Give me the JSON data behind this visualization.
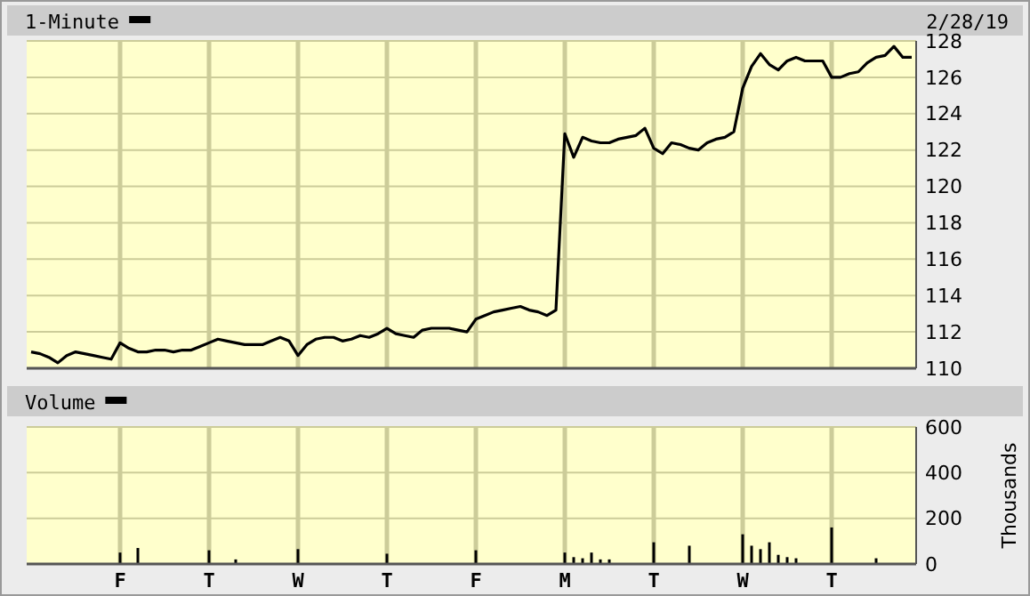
{
  "chart_data": [
    {
      "type": "line",
      "title": "1-Minute",
      "subtitle": "2/28/19",
      "grid": true,
      "tick_labels": "y",
      "ylim": [
        110,
        128
      ],
      "yticks": [
        110,
        112,
        114,
        116,
        118,
        120,
        122,
        124,
        126,
        128
      ],
      "categories": [
        null,
        null,
        null,
        null,
        null,
        null,
        null,
        null,
        null,
        null,
        null,
        null,
        null,
        null,
        null,
        null,
        null,
        null,
        null,
        null,
        null,
        null,
        null,
        null,
        null,
        null,
        null,
        null,
        null,
        null,
        null,
        null,
        null,
        null,
        null,
        null,
        null,
        null,
        null,
        null,
        null,
        null,
        null,
        null,
        null,
        null,
        null,
        null,
        null,
        null,
        null,
        null,
        null,
        null,
        null,
        null,
        null,
        null,
        null,
        null,
        null,
        null,
        null,
        null,
        null,
        null,
        null,
        null,
        null,
        null,
        null,
        null,
        null,
        null,
        null,
        null,
        null,
        null,
        null,
        null,
        null,
        null,
        null,
        null,
        null,
        null,
        null,
        null,
        null,
        null,
        null,
        null,
        null,
        null,
        null,
        null,
        null,
        null,
        null,
        null
      ],
      "series": [
        {
          "color": "#000000",
          "values": [
            110.9,
            110.8,
            110.6,
            110.3,
            110.7,
            110.9,
            110.8,
            110.7,
            110.6,
            110.5,
            111.4,
            111.1,
            110.9,
            110.9,
            111.0,
            111.0,
            110.9,
            111.0,
            111.0,
            111.2,
            111.4,
            111.6,
            111.5,
            111.4,
            111.3,
            111.3,
            111.3,
            111.5,
            111.7,
            111.5,
            110.7,
            111.3,
            111.6,
            111.7,
            111.7,
            111.5,
            111.6,
            111.8,
            111.7,
            111.9,
            112.2,
            111.9,
            111.8,
            111.7,
            112.1,
            112.2,
            112.2,
            112.2,
            112.1,
            112.0,
            112.7,
            112.9,
            113.1,
            113.2,
            113.3,
            113.4,
            113.2,
            113.1,
            112.9,
            113.2,
            122.9,
            121.6,
            122.7,
            122.5,
            122.4,
            122.4,
            122.6,
            122.7,
            122.8,
            123.2,
            122.1,
            121.8,
            122.4,
            122.3,
            122.1,
            122.0,
            122.4,
            122.6,
            122.7,
            123.0,
            125.4,
            126.6,
            127.3,
            126.7,
            126.4,
            126.9,
            127.1,
            126.9,
            126.9,
            126.9,
            126.0,
            126.0,
            126.2,
            126.3,
            126.8,
            127.1,
            127.2,
            127.7,
            127.1,
            127.1
          ]
        }
      ]
    },
    {
      "type": "bar",
      "title": "Volume",
      "ylabel": "Thousands",
      "grid": true,
      "ylim": [
        0,
        600
      ],
      "yticks": [
        0,
        200,
        400,
        600
      ],
      "categories": [
        null,
        null,
        null,
        null,
        null,
        null,
        null,
        null,
        null,
        null,
        "F",
        null,
        null,
        null,
        null,
        null,
        null,
        null,
        null,
        null,
        "T",
        null,
        null,
        null,
        null,
        null,
        null,
        null,
        null,
        null,
        "W",
        null,
        null,
        null,
        null,
        null,
        null,
        null,
        null,
        null,
        "T",
        null,
        null,
        null,
        null,
        null,
        null,
        null,
        null,
        null,
        "F",
        null,
        null,
        null,
        null,
        null,
        null,
        null,
        null,
        null,
        "M",
        null,
        null,
        null,
        null,
        null,
        null,
        null,
        null,
        null,
        "T",
        null,
        null,
        null,
        null,
        null,
        null,
        null,
        null,
        null,
        "W",
        null,
        null,
        null,
        null,
        null,
        null,
        null,
        null,
        null,
        "T",
        null,
        null,
        null,
        null,
        null,
        null,
        null,
        null,
        null
      ],
      "series": [
        {
          "color": "#000000",
          "values": [
            null,
            null,
            null,
            null,
            null,
            null,
            null,
            null,
            null,
            null,
            50,
            null,
            70,
            null,
            null,
            null,
            null,
            null,
            null,
            null,
            60,
            null,
            null,
            20,
            null,
            null,
            null,
            null,
            null,
            null,
            65,
            null,
            null,
            null,
            null,
            null,
            null,
            null,
            null,
            null,
            45,
            null,
            null,
            null,
            null,
            null,
            null,
            null,
            null,
            null,
            60,
            null,
            null,
            null,
            null,
            null,
            null,
            null,
            null,
            null,
            50,
            30,
            25,
            50,
            20,
            20,
            null,
            null,
            null,
            null,
            95,
            null,
            null,
            null,
            80,
            null,
            null,
            null,
            null,
            null,
            130,
            80,
            65,
            95,
            40,
            30,
            25,
            null,
            null,
            null,
            160,
            null,
            null,
            null,
            null,
            25,
            null,
            null,
            null,
            null
          ]
        }
      ]
    }
  ]
}
